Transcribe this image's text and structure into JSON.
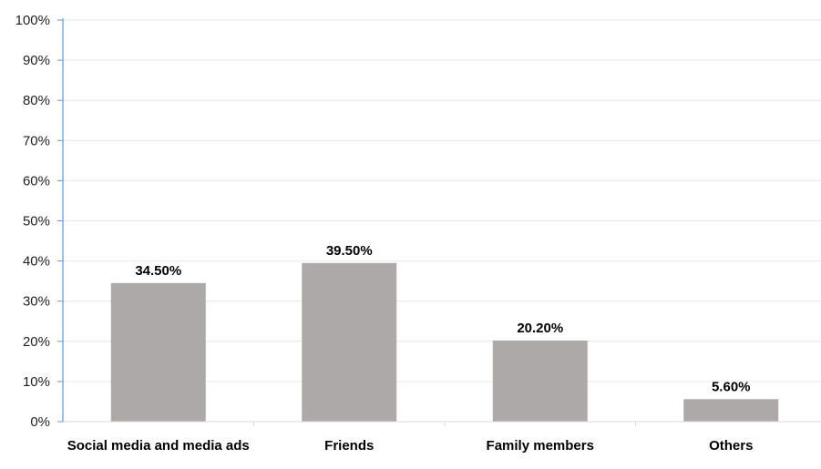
{
  "chart_data": {
    "type": "bar",
    "categories": [
      "Social media and media ads",
      "Friends",
      "Family members",
      "Others"
    ],
    "values": [
      34.5,
      39.5,
      20.2,
      5.6
    ],
    "data_labels": [
      "34.50%",
      "39.50%",
      "20.20%",
      "5.60%"
    ],
    "y_ticks": [
      "0%",
      "10%",
      "20%",
      "30%",
      "40%",
      "50%",
      "60%",
      "70%",
      "80%",
      "90%",
      "100%"
    ],
    "ylim": [
      0,
      100
    ],
    "grid": true,
    "legend": "none",
    "title": "",
    "xlabel": "",
    "ylabel": "",
    "colors": {
      "bar": "#aca9a8",
      "grid": "#e6e6e6",
      "axis": "#5b9bd5",
      "baseline": "#d9d9d9"
    }
  }
}
